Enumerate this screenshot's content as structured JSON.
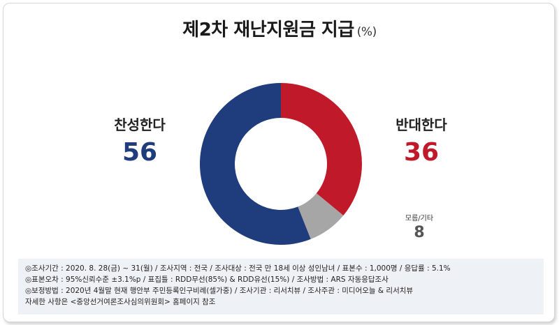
{
  "title": "제2차 재난지원금 지급",
  "unit": "(%)",
  "chart_data": {
    "type": "pie",
    "style": "donut",
    "title": "제2차 재난지원금 지급",
    "unit": "(%)",
    "categories": [
      "반대한다",
      "모름/기타",
      "찬성한다"
    ],
    "values": [
      36,
      8,
      56
    ],
    "colors": [
      "#c0192a",
      "#a6a6a6",
      "#1f3c7c"
    ]
  },
  "labels": {
    "agree": {
      "name": "찬성한다",
      "value": "56"
    },
    "oppose": {
      "name": "반대한다",
      "value": "36"
    },
    "other": {
      "name": "모름/기타",
      "value": "8"
    }
  },
  "notes": [
    "◎조사기간 : 2020. 8. 28(금) ~ 31(월) / 조사지역 : 전국 / 조사대상 : 전국 만 18세 이상 성인남녀 / 표본수 : 1,000명 / 응답률 : 5.1%",
    "◎표본오차 : 95%신뢰수준 ±3.1%p / 표집틀 : RDD무선(85%) & RDD유선(15%) / 조사방법 : ARS 자동응답조사",
    "◎보정방법 : 2020년 4월말 현재 행안부 주민등록인구비례(셀가중) / 조사기관 : 리서치뷰 / 조사주관 : 미디어오늘 & 리서치뷰",
    "자세한 사항은 <중앙선거여론조사심의위원회> 홈페이지 참조"
  ]
}
